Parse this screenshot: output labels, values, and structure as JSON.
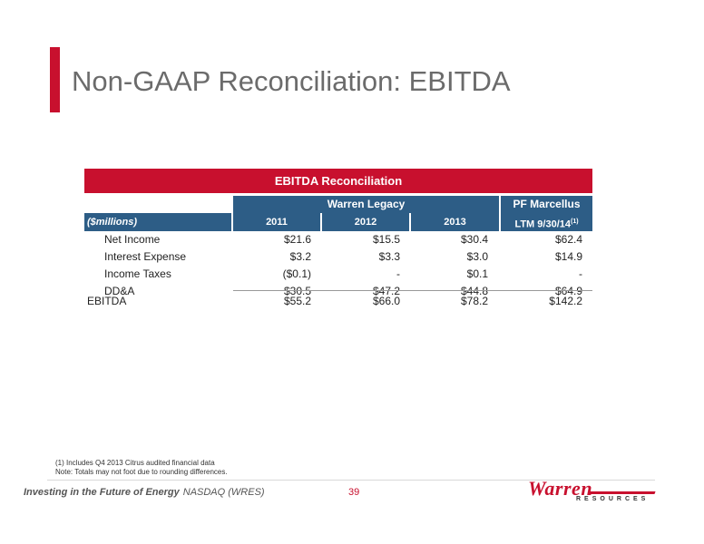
{
  "title": "Non-GAAP Reconciliation: EBITDA",
  "table": {
    "banner": "EBITDA Reconciliation",
    "group_warren": "Warren Legacy",
    "group_pf": "PF Marcellus",
    "units_label": "($millions)",
    "columns": [
      "2011",
      "2012",
      "2013",
      "LTM 9/30/14"
    ],
    "ltm_footnote_mark": "(1)",
    "rows": [
      {
        "label": "Net Income",
        "values": [
          "$21.6",
          "$15.5",
          "$30.4",
          "$62.4"
        ]
      },
      {
        "label": "Interest Expense",
        "values": [
          "$3.2",
          "$3.3",
          "$3.0",
          "$14.9"
        ]
      },
      {
        "label": "Income Taxes",
        "values": [
          "($0.1)",
          "-",
          "$0.1",
          "-"
        ]
      },
      {
        "label": "DD&A",
        "values": [
          "$30.5",
          "$47.2",
          "$44.8",
          "$64.9"
        ]
      },
      {
        "label": "EBITDA",
        "values": [
          "$55.2",
          "$66.0",
          "$78.2",
          "$142.2"
        ]
      }
    ]
  },
  "footnotes": {
    "note1": "(1) Includes Q4 2013 Citrus audited financial data",
    "note2": "Note: Totals may not foot due to rounding differences."
  },
  "footer": {
    "tagline": "Investing in the Future of Energy",
    "exchange": "NASDAQ (WRES)",
    "page_number": "39",
    "logo_word": "Warren",
    "logo_sub": "RESOURCES"
  },
  "colors": {
    "accent_red": "#c8102e",
    "header_blue": "#2d5d86"
  }
}
